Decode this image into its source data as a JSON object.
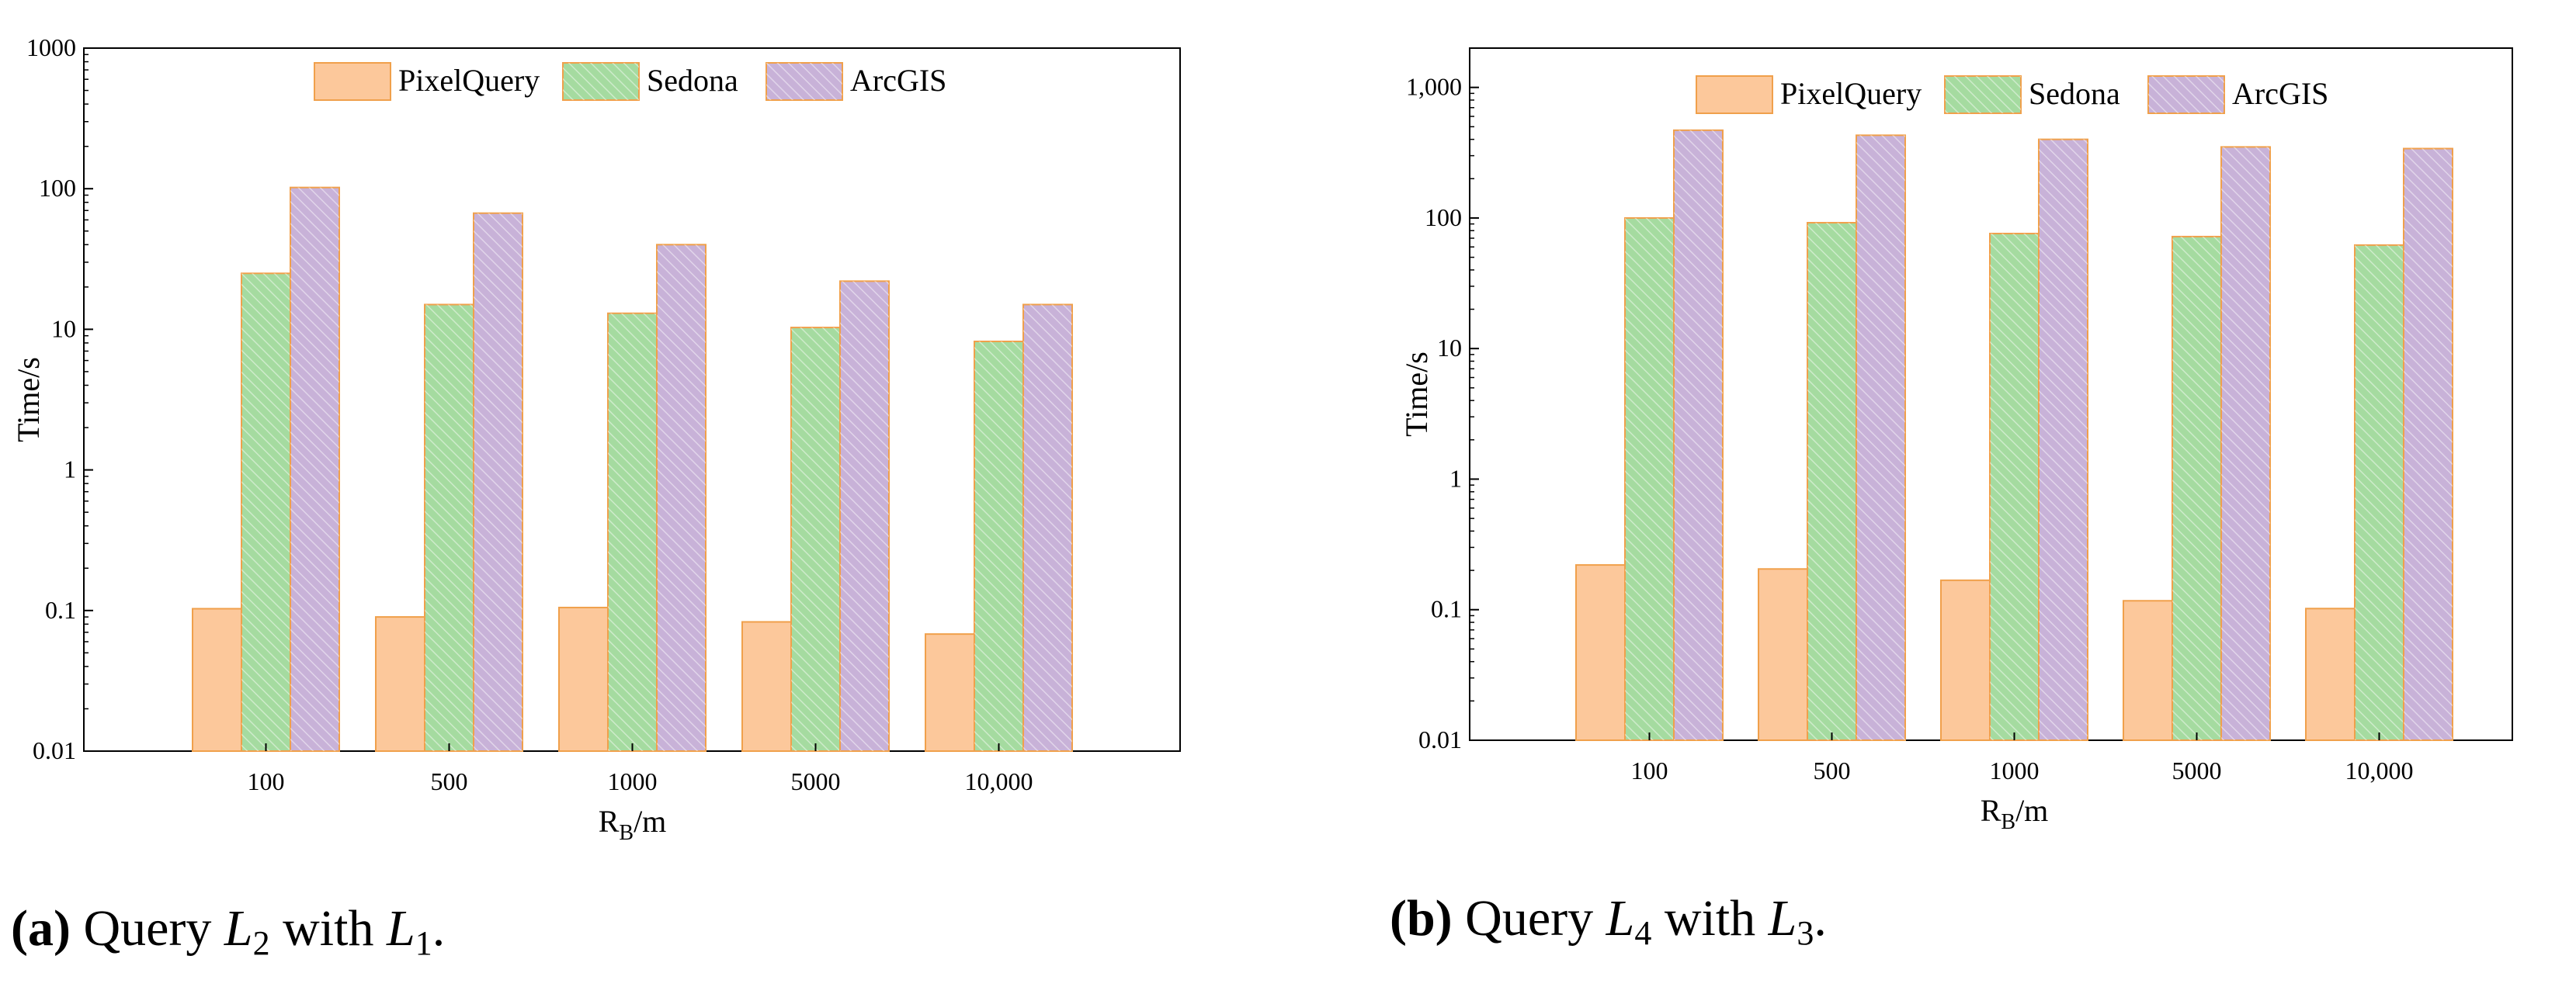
{
  "figure": {
    "legend": [
      "PixelQuery",
      "Sedona",
      "ArcGIS"
    ],
    "colors": {
      "PixelQuery": "#fcc89b",
      "Sedona": "#a5dba0",
      "ArcGIS": "#c8b2d8",
      "edge": "#f0a04b",
      "hatch": "#ffffff"
    }
  },
  "chart_data": [
    {
      "type": "bar",
      "scale": "log",
      "categories": [
        "100",
        "500",
        "1000",
        "5000",
        "10,000"
      ],
      "series": [
        {
          "name": "PixelQuery",
          "values": [
            0.103,
            0.09,
            0.105,
            0.083,
            0.068
          ]
        },
        {
          "name": "Sedona",
          "values": [
            25,
            15,
            13,
            10.3,
            8.2
          ]
        },
        {
          "name": "ArcGIS",
          "values": [
            102,
            67,
            40,
            22,
            15
          ]
        }
      ],
      "ylim": [
        0.01,
        1000
      ],
      "yticks": [
        "0.01",
        "0.1",
        "1",
        "10",
        "100",
        "1000"
      ],
      "xlabel_main": "R",
      "xlabel_sub": "B",
      "xlabel_unit": "/m",
      "ylabel": "Time/s",
      "caption": {
        "label": "(a)",
        "text1": "Query",
        "var1": "L",
        "sub1": "2",
        "text2": "with",
        "var2": "L",
        "sub2": "1",
        "end": "."
      }
    },
    {
      "type": "bar",
      "scale": "log",
      "categories": [
        "100",
        "500",
        "1000",
        "5000",
        "10,000"
      ],
      "series": [
        {
          "name": "PixelQuery",
          "values": [
            0.22,
            0.205,
            0.168,
            0.117,
            0.102
          ]
        },
        {
          "name": "Sedona",
          "values": [
            100,
            92,
            76,
            72,
            62
          ]
        },
        {
          "name": "ArcGIS",
          "values": [
            470,
            430,
            400,
            350,
            340
          ]
        }
      ],
      "ylim": [
        0.01,
        2000
      ],
      "yticks": [
        "0.01",
        "0.1",
        "1",
        "10",
        "100",
        "1,000"
      ],
      "xlabel_main": "R",
      "xlabel_sub": "B",
      "xlabel_unit": "/m",
      "ylabel": "Time/s",
      "caption": {
        "label": "(b)",
        "text1": "Query",
        "var1": "L",
        "sub1": "4",
        "text2": "with",
        "var2": "L",
        "sub2": "3",
        "end": "."
      }
    }
  ]
}
